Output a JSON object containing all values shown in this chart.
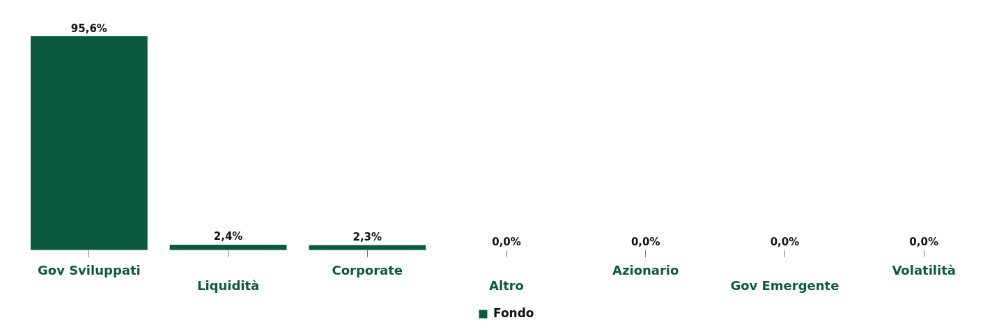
{
  "chart_data": {
    "type": "bar",
    "categories": [
      "Gov Sviluppati",
      "Liquidità",
      "Corporate",
      "Altro",
      "Azionario",
      "Gov Emergente",
      "Volatilità"
    ],
    "series": [
      {
        "name": "Fondo",
        "color": "#0b5a3f",
        "values": [
          95.6,
          2.4,
          2.3,
          0,
          0,
          0,
          0
        ],
        "value_labels": [
          "95,6%",
          "2,4%",
          "2,3%",
          "0,0%",
          "0,0%",
          "0,0%",
          "0,0%"
        ]
      }
    ],
    "tick_labels": "x",
    "grid": false,
    "legend": "bottom"
  }
}
